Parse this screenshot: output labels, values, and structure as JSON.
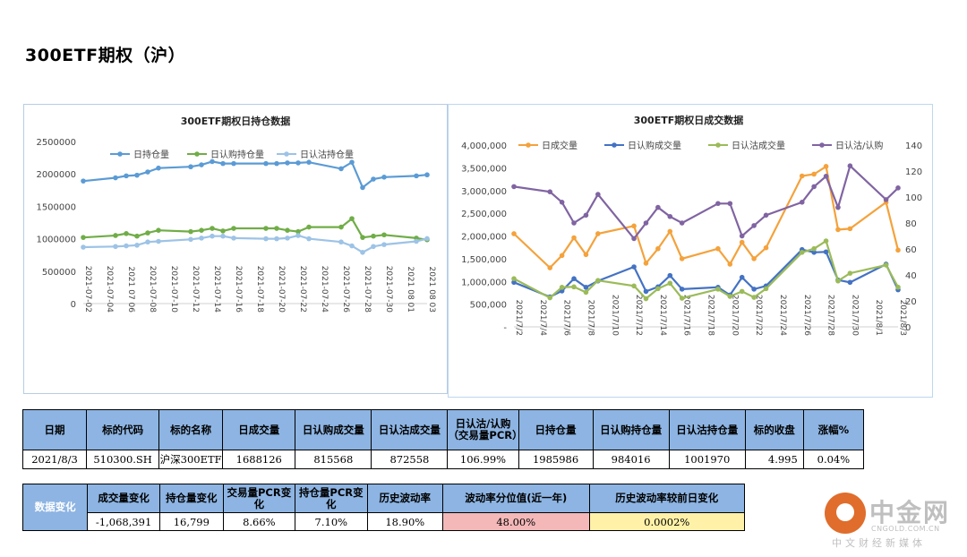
{
  "page": {
    "title": "300ETF期权（沪）"
  },
  "colors": {
    "accent_blue": "#8db4e2",
    "side_blue": "#2e5f9e",
    "pink": "#f4b8b8",
    "yellow": "#fff2a8"
  },
  "chart_data": [
    {
      "type": "line",
      "title": "300ETF期权日持仓数据",
      "x": [
        "2021-07-02",
        "2021-07-05",
        "2021-07-06",
        "2021-07-07",
        "2021-07-08",
        "2021-07-09",
        "2021-07-12",
        "2021-07-13",
        "2021-07-14",
        "2021-07-15",
        "2021-07-16",
        "2021-07-19",
        "2021-07-20",
        "2021-07-21",
        "2021-07-22",
        "2021-07-23",
        "2021-07-26",
        "2021-07-27",
        "2021-07-28",
        "2021-07-29",
        "2021-07-30",
        "2021-08-02",
        "2021-08-03"
      ],
      "x_tick_labels": [
        "2021-07-02",
        "2021-07-04",
        "2021 07 06",
        "2021-07-08",
        "2021-07-10",
        "2021-07-12",
        "2021-07-14",
        "2021-07-16",
        "2021-07-18",
        "2021-07-20",
        "2021-07-22",
        "2021-07-24",
        "2021-07-26",
        "2021-07-28",
        "2021-07-30",
        "2021 08 01",
        "2021 08 03"
      ],
      "y_ticks": [
        "0",
        "500000",
        "1000000",
        "1500000",
        "2000000",
        "2500000"
      ],
      "ylim": [
        0,
        2500000
      ],
      "legend_position": "top",
      "series": [
        {
          "name": "日持仓量",
          "color": "#5b9bd5",
          "values": [
            1890000,
            1940000,
            1970000,
            1980000,
            2030000,
            2090000,
            2110000,
            2140000,
            2190000,
            2160000,
            2160000,
            2160000,
            2160000,
            2170000,
            2170000,
            2180000,
            2080000,
            2180000,
            1790000,
            1920000,
            1950000,
            1970000,
            1985986
          ]
        },
        {
          "name": "日认购持仓量",
          "color": "#70ad47",
          "values": [
            1020000,
            1050000,
            1080000,
            1040000,
            1090000,
            1130000,
            1110000,
            1130000,
            1160000,
            1120000,
            1160000,
            1160000,
            1160000,
            1130000,
            1110000,
            1180000,
            1180000,
            1310000,
            1020000,
            1040000,
            1060000,
            1010000,
            984016
          ]
        },
        {
          "name": "日认沽持仓量",
          "color": "#9dc3e6",
          "values": [
            870000,
            880000,
            890000,
            900000,
            950000,
            960000,
            990000,
            1010000,
            1040000,
            1040000,
            1010000,
            1000000,
            1000000,
            1010000,
            1050000,
            1000000,
            950000,
            890000,
            790000,
            880000,
            910000,
            960000,
            1001970
          ]
        }
      ]
    },
    {
      "type": "line",
      "title": "300ETF期权日成交数据",
      "x": [
        "2021/7/2",
        "2021/7/5",
        "2021/7/6",
        "2021/7/7",
        "2021/7/8",
        "2021/7/9",
        "2021/7/12",
        "2021/7/13",
        "2021/7/14",
        "2021/7/15",
        "2021/7/16",
        "2021/7/19",
        "2021/7/20",
        "2021/7/21",
        "2021/7/22",
        "2021/7/23",
        "2021/7/26",
        "2021/7/27",
        "2021/7/28",
        "2021/7/29",
        "2021/7/30",
        "2021/8/2",
        "2021/8/3"
      ],
      "x_tick_labels": [
        "2021/7/2",
        "2021/7/4",
        "2021/7/6",
        "2021/7/8",
        "2021/7/10",
        "2021/7/12",
        "2021/7/14",
        "2021/7/16",
        "2021/7/18",
        "2021/7/20",
        "2021/7/22",
        "2021/7/24",
        "2021/7/26",
        "2021/7/28",
        "2021/7/30",
        "2021/8/1",
        "2021/8/3"
      ],
      "y_ticks": [
        "-",
        "500,000",
        "1,000,000",
        "1,500,000",
        "2,000,000",
        "2,500,000",
        "3,000,000",
        "3,500,000",
        "4,000,000"
      ],
      "y2_ticks": [
        "0",
        "20",
        "40",
        "60",
        "80",
        "100",
        "120",
        "140"
      ],
      "ylim": [
        0,
        4000000
      ],
      "y2lim": [
        0,
        140
      ],
      "legend_position": "top",
      "series": [
        {
          "name": "日成交量",
          "color": "#f4a23c",
          "axis": "left",
          "values": [
            2050000,
            1300000,
            1570000,
            1960000,
            1590000,
            2050000,
            2220000,
            1400000,
            1720000,
            2100000,
            1500000,
            1720000,
            1380000,
            1860000,
            1500000,
            1740000,
            3320000,
            3360000,
            3530000,
            2140000,
            2160000,
            2740000,
            1688126
          ]
        },
        {
          "name": "日认购成交量",
          "color": "#4472c4",
          "axis": "left",
          "values": [
            980000,
            660000,
            790000,
            1060000,
            870000,
            1010000,
            1320000,
            780000,
            880000,
            1130000,
            830000,
            870000,
            700000,
            1090000,
            830000,
            900000,
            1700000,
            1640000,
            1650000,
            1030000,
            980000,
            1380000,
            815568
          ]
        },
        {
          "name": "日认沽成交量",
          "color": "#9bbb59",
          "axis": "left",
          "values": [
            1060000,
            640000,
            870000,
            880000,
            760000,
            1020000,
            900000,
            620000,
            840000,
            960000,
            630000,
            830000,
            670000,
            780000,
            650000,
            840000,
            1640000,
            1720000,
            1890000,
            1010000,
            1180000,
            1360000,
            872558
          ]
        },
        {
          "name": "日认沽/认购",
          "color": "#8064a2",
          "axis": "right",
          "values": [
            108,
            104,
            96,
            80,
            86,
            102,
            68,
            80,
            92,
            85,
            80,
            95,
            95,
            70,
            78,
            86,
            96,
            108,
            116,
            92,
            124,
            98,
            107
          ]
        }
      ]
    }
  ],
  "table_main": {
    "headers": [
      "日期",
      "标的代码",
      "标的名称",
      "日成交量",
      "日认购成交量",
      "日认沽成交量",
      "日认沽/认购（交易量PCR）",
      "日持仓量",
      "日认购持仓量",
      "日认沽持仓量",
      "标的收盘",
      "涨幅%"
    ],
    "values": [
      "2021/8/3",
      "510300.SH",
      "沪深300ETF",
      "1688126",
      "815568",
      "872558",
      "106.99%",
      "1985986",
      "984016",
      "1001970",
      "4.995",
      "0.04%"
    ]
  },
  "table_change": {
    "side_label": "数据变化",
    "headers": [
      "成交量变化",
      "持仓量变化",
      "交易量PCR变化",
      "持仓量PCR变化",
      "历史波动率",
      "波动率分位值(近一年)",
      "历史波动率较前日变化"
    ],
    "values": [
      "-1,068,391",
      "16,799",
      "8.66%",
      "7.10%",
      "18.90%",
      "48.00%",
      "0.0002%"
    ]
  },
  "logo": {
    "name": "中金网",
    "domain": "CNGOLD.COM.CN",
    "slogan": "中文财经新媒体"
  }
}
